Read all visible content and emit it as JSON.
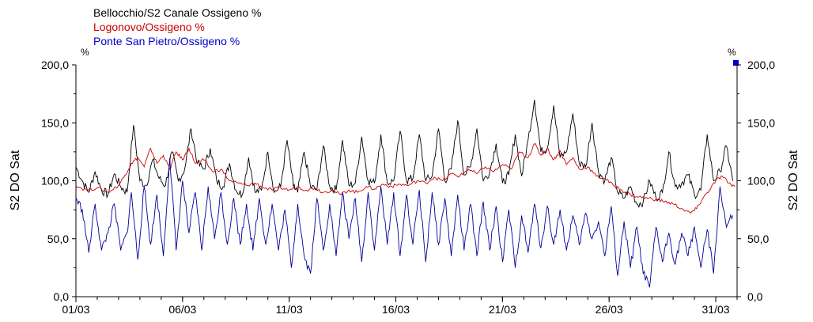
{
  "chart_data": {
    "type": "line",
    "ylabel_left": "S2 DO Sat",
    "ylabel_right": "S2 DO Sat",
    "unit_left": "%",
    "unit_right": "%",
    "ylim": [
      0,
      200
    ],
    "yticks": [
      "0,0",
      "50,0",
      "100,0",
      "150,0",
      "200,0"
    ],
    "xlim_days": [
      1,
      32
    ],
    "xticks": [
      {
        "label": "01/03",
        "day": 1
      },
      {
        "label": "06/03",
        "day": 6
      },
      {
        "label": "11/03",
        "day": 11
      },
      {
        "label": "16/03",
        "day": 16
      },
      {
        "label": "21/03",
        "day": 21
      },
      {
        "label": "26/03",
        "day": 26
      },
      {
        "label": "31/03",
        "day": 31
      }
    ],
    "series": [
      {
        "name": "Bellocchio/S2 Canale Ossigeno %",
        "color": "#000000",
        "points": [
          [
            1.0,
            112
          ],
          [
            1.3,
            100
          ],
          [
            1.6,
            90
          ],
          [
            1.9,
            108
          ],
          [
            2.2,
            92
          ],
          [
            2.5,
            88
          ],
          [
            2.8,
            106
          ],
          [
            3.1,
            95
          ],
          [
            3.4,
            90
          ],
          [
            3.7,
            148
          ],
          [
            4.0,
            100
          ],
          [
            4.3,
            96
          ],
          [
            4.6,
            118
          ],
          [
            4.9,
            102
          ],
          [
            5.2,
            96
          ],
          [
            5.5,
            125
          ],
          [
            5.8,
            100
          ],
          [
            6.1,
            110
          ],
          [
            6.4,
            145
          ],
          [
            6.7,
            115
          ],
          [
            7.0,
            110
          ],
          [
            7.3,
            128
          ],
          [
            7.6,
            100
          ],
          [
            7.9,
            95
          ],
          [
            8.2,
            115
          ],
          [
            8.5,
            92
          ],
          [
            8.8,
            88
          ],
          [
            9.1,
            120
          ],
          [
            9.4,
            90
          ],
          [
            9.7,
            92
          ],
          [
            10.0,
            125
          ],
          [
            10.3,
            90
          ],
          [
            10.6,
            95
          ],
          [
            10.9,
            135
          ],
          [
            11.2,
            95
          ],
          [
            11.4,
            90
          ],
          [
            11.7,
            125
          ],
          [
            12.0,
            95
          ],
          [
            12.3,
            92
          ],
          [
            12.6,
            130
          ],
          [
            12.9,
            95
          ],
          [
            13.2,
            92
          ],
          [
            13.5,
            135
          ],
          [
            13.8,
            96
          ],
          [
            14.1,
            98
          ],
          [
            14.4,
            138
          ],
          [
            14.7,
            100
          ],
          [
            15.0,
            98
          ],
          [
            15.3,
            140
          ],
          [
            15.6,
            98
          ],
          [
            15.9,
            100
          ],
          [
            16.2,
            143
          ],
          [
            16.5,
            100
          ],
          [
            16.8,
            102
          ],
          [
            17.1,
            140
          ],
          [
            17.4,
            100
          ],
          [
            17.7,
            104
          ],
          [
            18.0,
            145
          ],
          [
            18.3,
            100
          ],
          [
            18.6,
            110
          ],
          [
            18.9,
            152
          ],
          [
            19.2,
            105
          ],
          [
            19.5,
            112
          ],
          [
            19.8,
            145
          ],
          [
            20.1,
            100
          ],
          [
            20.4,
            108
          ],
          [
            20.7,
            132
          ],
          [
            21.0,
            98
          ],
          [
            21.3,
            105
          ],
          [
            21.6,
            140
          ],
          [
            21.9,
            104
          ],
          [
            22.2,
            135
          ],
          [
            22.5,
            170
          ],
          [
            22.8,
            125
          ],
          [
            23.1,
            128
          ],
          [
            23.4,
            165
          ],
          [
            23.7,
            120
          ],
          [
            24.0,
            125
          ],
          [
            24.3,
            158
          ],
          [
            24.6,
            115
          ],
          [
            24.9,
            112
          ],
          [
            25.2,
            150
          ],
          [
            25.5,
            108
          ],
          [
            25.8,
            100
          ],
          [
            26.1,
            120
          ],
          [
            26.4,
            90
          ],
          [
            26.7,
            85
          ],
          [
            27.0,
            95
          ],
          [
            27.3,
            80
          ],
          [
            27.6,
            82
          ],
          [
            27.9,
            100
          ],
          [
            28.2,
            85
          ],
          [
            28.5,
            90
          ],
          [
            28.8,
            125
          ],
          [
            29.1,
            95
          ],
          [
            29.4,
            98
          ],
          [
            29.7,
            105
          ],
          [
            30.0,
            88
          ],
          [
            30.3,
            92
          ],
          [
            30.6,
            140
          ],
          [
            30.9,
            100
          ],
          [
            31.2,
            108
          ],
          [
            31.5,
            130
          ],
          [
            31.8,
            100
          ]
        ]
      },
      {
        "name": "Logonovo/Ossigeno %",
        "color": "#cc0000",
        "points": [
          [
            1.0,
            96
          ],
          [
            1.5,
            92
          ],
          [
            2.0,
            94
          ],
          [
            2.5,
            90
          ],
          [
            3.0,
            96
          ],
          [
            3.3,
            105
          ],
          [
            3.6,
            115
          ],
          [
            3.9,
            120
          ],
          [
            4.2,
            112
          ],
          [
            4.5,
            128
          ],
          [
            4.8,
            115
          ],
          [
            5.1,
            122
          ],
          [
            5.4,
            110
          ],
          [
            5.7,
            125
          ],
          [
            6.0,
            118
          ],
          [
            6.3,
            128
          ],
          [
            6.6,
            115
          ],
          [
            7.0,
            118
          ],
          [
            7.4,
            108
          ],
          [
            7.8,
            110
          ],
          [
            8.2,
            100
          ],
          [
            8.6,
            98
          ],
          [
            9.0,
            96
          ],
          [
            9.4,
            98
          ],
          [
            9.8,
            94
          ],
          [
            10.2,
            92
          ],
          [
            10.6,
            94
          ],
          [
            11.0,
            92
          ],
          [
            11.4,
            95
          ],
          [
            11.8,
            92
          ],
          [
            12.2,
            94
          ],
          [
            12.6,
            90
          ],
          [
            13.0,
            92
          ],
          [
            13.4,
            88
          ],
          [
            13.8,
            92
          ],
          [
            14.2,
            90
          ],
          [
            14.6,
            95
          ],
          [
            15.0,
            93
          ],
          [
            15.4,
            97
          ],
          [
            15.8,
            95
          ],
          [
            16.2,
            97
          ],
          [
            16.6,
            96
          ],
          [
            17.0,
            100
          ],
          [
            17.4,
            98
          ],
          [
            17.8,
            103
          ],
          [
            18.2,
            100
          ],
          [
            18.6,
            106
          ],
          [
            19.0,
            104
          ],
          [
            19.4,
            110
          ],
          [
            19.8,
            106
          ],
          [
            20.2,
            112
          ],
          [
            20.6,
            108
          ],
          [
            21.0,
            114
          ],
          [
            21.4,
            110
          ],
          [
            21.8,
            125
          ],
          [
            22.2,
            120
          ],
          [
            22.5,
            132
          ],
          [
            22.8,
            122
          ],
          [
            23.1,
            128
          ],
          [
            23.4,
            118
          ],
          [
            23.7,
            126
          ],
          [
            24.0,
            114
          ],
          [
            24.3,
            120
          ],
          [
            24.6,
            110
          ],
          [
            25.0,
            112
          ],
          [
            25.4,
            104
          ],
          [
            25.8,
            102
          ],
          [
            26.2,
            96
          ],
          [
            26.6,
            92
          ],
          [
            27.0,
            88
          ],
          [
            27.4,
            86
          ],
          [
            27.8,
            85
          ],
          [
            28.2,
            84
          ],
          [
            28.6,
            82
          ],
          [
            29.0,
            80
          ],
          [
            29.4,
            76
          ],
          [
            29.8,
            72
          ],
          [
            30.1,
            76
          ],
          [
            30.4,
            85
          ],
          [
            30.7,
            92
          ],
          [
            31.0,
            100
          ],
          [
            31.3,
            104
          ],
          [
            31.6,
            98
          ],
          [
            31.9,
            95
          ]
        ]
      },
      {
        "name": "Ponte San Pietro/Ossigeno %",
        "color": "#000099",
        "points": [
          [
            1.0,
            85
          ],
          [
            1.3,
            75
          ],
          [
            1.6,
            38
          ],
          [
            1.9,
            80
          ],
          [
            2.2,
            40
          ],
          [
            2.5,
            55
          ],
          [
            2.8,
            80
          ],
          [
            3.1,
            40
          ],
          [
            3.4,
            55
          ],
          [
            3.6,
            90
          ],
          [
            3.9,
            32
          ],
          [
            4.2,
            95
          ],
          [
            4.5,
            45
          ],
          [
            4.8,
            88
          ],
          [
            5.1,
            35
          ],
          [
            5.4,
            120
          ],
          [
            5.7,
            40
          ],
          [
            6.0,
            100
          ],
          [
            6.3,
            55
          ],
          [
            6.6,
            90
          ],
          [
            6.9,
            40
          ],
          [
            7.2,
            95
          ],
          [
            7.5,
            50
          ],
          [
            7.8,
            90
          ],
          [
            8.1,
            45
          ],
          [
            8.4,
            85
          ],
          [
            8.7,
            45
          ],
          [
            9.0,
            80
          ],
          [
            9.3,
            40
          ],
          [
            9.6,
            85
          ],
          [
            9.9,
            45
          ],
          [
            10.2,
            80
          ],
          [
            10.5,
            40
          ],
          [
            10.8,
            75
          ],
          [
            11.1,
            25
          ],
          [
            11.4,
            80
          ],
          [
            11.7,
            35
          ],
          [
            12.0,
            20
          ],
          [
            12.3,
            85
          ],
          [
            12.6,
            40
          ],
          [
            12.9,
            80
          ],
          [
            13.2,
            35
          ],
          [
            13.5,
            90
          ],
          [
            13.8,
            50
          ],
          [
            14.1,
            85
          ],
          [
            14.4,
            30
          ],
          [
            14.7,
            90
          ],
          [
            15.0,
            40
          ],
          [
            15.3,
            95
          ],
          [
            15.6,
            45
          ],
          [
            15.9,
            90
          ],
          [
            16.2,
            35
          ],
          [
            16.5,
            88
          ],
          [
            16.8,
            45
          ],
          [
            17.1,
            92
          ],
          [
            17.4,
            30
          ],
          [
            17.7,
            90
          ],
          [
            18.0,
            45
          ],
          [
            18.3,
            85
          ],
          [
            18.6,
            35
          ],
          [
            18.9,
            88
          ],
          [
            19.2,
            40
          ],
          [
            19.5,
            80
          ],
          [
            19.8,
            35
          ],
          [
            20.1,
            82
          ],
          [
            20.4,
            40
          ],
          [
            20.7,
            78
          ],
          [
            21.0,
            30
          ],
          [
            21.3,
            75
          ],
          [
            21.6,
            25
          ],
          [
            21.9,
            70
          ],
          [
            22.2,
            38
          ],
          [
            22.5,
            80
          ],
          [
            22.8,
            42
          ],
          [
            23.1,
            78
          ],
          [
            23.4,
            45
          ],
          [
            23.7,
            75
          ],
          [
            24.0,
            40
          ],
          [
            24.3,
            70
          ],
          [
            24.6,
            45
          ],
          [
            24.9,
            72
          ],
          [
            25.2,
            50
          ],
          [
            25.5,
            65
          ],
          [
            25.8,
            35
          ],
          [
            26.1,
            78
          ],
          [
            26.4,
            18
          ],
          [
            26.7,
            65
          ],
          [
            27.0,
            25
          ],
          [
            27.3,
            60
          ],
          [
            27.6,
            20
          ],
          [
            27.9,
            8
          ],
          [
            28.2,
            60
          ],
          [
            28.5,
            30
          ],
          [
            28.8,
            55
          ],
          [
            29.1,
            28
          ],
          [
            29.4,
            55
          ],
          [
            29.7,
            35
          ],
          [
            30.0,
            60
          ],
          [
            30.3,
            25
          ],
          [
            30.6,
            58
          ],
          [
            30.9,
            20
          ],
          [
            31.2,
            95
          ],
          [
            31.5,
            60
          ],
          [
            31.8,
            70
          ]
        ]
      }
    ]
  }
}
